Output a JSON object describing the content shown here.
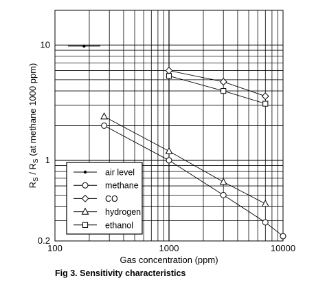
{
  "caption": "Fig 3. Sensitivity characteristics",
  "chart_data": {
    "type": "line",
    "title": "",
    "xlabel": "Gas concentration (ppm)",
    "ylabel": "RS / RS (at methane 1000 ppm)",
    "ylabel_parts": {
      "r1": "R",
      "s1": "S",
      "mid": " / R",
      "s2": "S",
      "rest": " (at methane 1000 ppm)"
    },
    "x_scale": "log",
    "y_scale": "log",
    "xlim": [
      100,
      10000
    ],
    "ylim": [
      0.2,
      20
    ],
    "x_ticks": [
      {
        "value": 100,
        "label": "100"
      },
      {
        "value": 1000,
        "label": "1000"
      },
      {
        "value": 10000,
        "label": "10000"
      }
    ],
    "y_ticks": [
      {
        "value": 0.2,
        "label": "0.2"
      },
      {
        "value": 1,
        "label": "1"
      },
      {
        "value": 10,
        "label": "10"
      }
    ],
    "grid": true,
    "legend_position": "bottom-left",
    "series": [
      {
        "name": "air level",
        "marker": "dot",
        "points": [
          [
            180,
            9.8
          ]
        ],
        "error_x": [
          130,
          250
        ]
      },
      {
        "name": "methane",
        "marker": "circle",
        "points": [
          [
            270,
            2.0
          ],
          [
            1000,
            1.0
          ],
          [
            3000,
            0.5
          ],
          [
            7000,
            0.29
          ],
          [
            10000,
            0.22
          ]
        ]
      },
      {
        "name": "CO",
        "marker": "diamond",
        "points": [
          [
            1000,
            6.0
          ],
          [
            3000,
            4.8
          ],
          [
            7000,
            3.6
          ]
        ]
      },
      {
        "name": "hydrogen",
        "marker": "triangle",
        "points": [
          [
            270,
            2.4
          ],
          [
            1000,
            1.2
          ],
          [
            3000,
            0.65
          ],
          [
            7000,
            0.42
          ]
        ]
      },
      {
        "name": "ethanol",
        "marker": "square",
        "points": [
          [
            1000,
            5.4
          ],
          [
            3000,
            4.0
          ],
          [
            7000,
            3.1
          ]
        ]
      }
    ]
  }
}
